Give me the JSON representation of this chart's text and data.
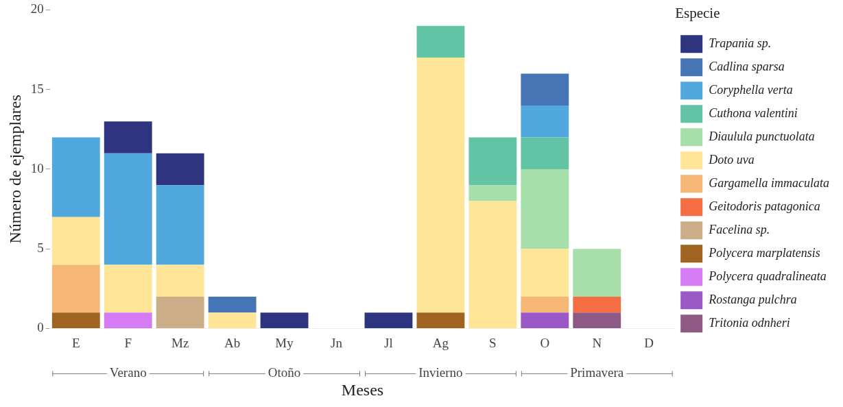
{
  "chart_data": {
    "type": "bar",
    "stacked": true,
    "xlabel": "Meses",
    "ylabel": "Número de ejemplares",
    "legend_title": "Especie",
    "legend": "right",
    "grid": false,
    "categories": [
      "E",
      "F",
      "Mz",
      "Ab",
      "My",
      "Jn",
      "Jl",
      "Ag",
      "S",
      "O",
      "N",
      "D"
    ],
    "ylim": [
      0,
      20
    ],
    "yticks": [
      0,
      5,
      10,
      15,
      20
    ],
    "annotations": [
      "Verano",
      "Otoño",
      "Invierno",
      "Primavera"
    ],
    "series": [
      {
        "name": "Tritonia odnheri",
        "color": "#8c5a85",
        "values": [
          0,
          0,
          0,
          0,
          0,
          0,
          0,
          0,
          0,
          0,
          1,
          0
        ]
      },
      {
        "name": "Rostanga pulchra",
        "color": "#9b59c8",
        "values": [
          0,
          0,
          0,
          0,
          0,
          0,
          0,
          0,
          0,
          1,
          0,
          0
        ]
      },
      {
        "name": "Polycera quadralineata",
        "color": "#d57cf5",
        "values": [
          0,
          1,
          0,
          0,
          0,
          0,
          0,
          0,
          0,
          0,
          0,
          0
        ]
      },
      {
        "name": "Polycera marplatensis",
        "color": "#9e6420",
        "values": [
          1,
          0,
          0,
          0,
          0,
          0,
          0,
          1,
          0,
          0,
          0,
          0
        ]
      },
      {
        "name": "Facelina sp.",
        "color": "#cbae88",
        "values": [
          0,
          0,
          2,
          0,
          0,
          0,
          0,
          0,
          0,
          0,
          0,
          0
        ]
      },
      {
        "name": "Geitodoris patagonica",
        "color": "#f46d43",
        "values": [
          0,
          0,
          0,
          0,
          0,
          0,
          0,
          0,
          0,
          0,
          1,
          0
        ]
      },
      {
        "name": "Gargamella immaculata",
        "color": "#f6b776",
        "values": [
          3,
          0,
          0,
          0,
          0,
          0,
          0,
          0,
          0,
          1,
          0,
          0
        ]
      },
      {
        "name": "Doto uva",
        "color": "#fee597",
        "values": [
          3,
          3,
          2,
          1,
          0,
          0,
          0,
          16,
          8,
          3,
          0,
          0
        ]
      },
      {
        "name": "Diaulula punctuolata",
        "color": "#a6dfa9",
        "values": [
          0,
          0,
          0,
          0,
          0,
          0,
          0,
          0,
          1,
          5,
          3,
          0
        ]
      },
      {
        "name": "Cuthona valentini",
        "color": "#63c3a5",
        "values": [
          0,
          0,
          0,
          0,
          0,
          0,
          0,
          2,
          3,
          2,
          0,
          0
        ]
      },
      {
        "name": "Coryphella verta",
        "color": "#50a8de",
        "values": [
          5,
          7,
          5,
          0,
          0,
          0,
          0,
          0,
          0,
          2,
          0,
          0
        ]
      },
      {
        "name": "Cadlina sparsa",
        "color": "#4575b4",
        "values": [
          0,
          0,
          0,
          1,
          0,
          0,
          0,
          0,
          0,
          2,
          0,
          0
        ]
      },
      {
        "name": "Trapania sp.",
        "color": "#2e3480",
        "values": [
          0,
          2,
          2,
          0,
          1,
          0,
          1,
          0,
          0,
          0,
          0,
          0
        ]
      }
    ]
  }
}
